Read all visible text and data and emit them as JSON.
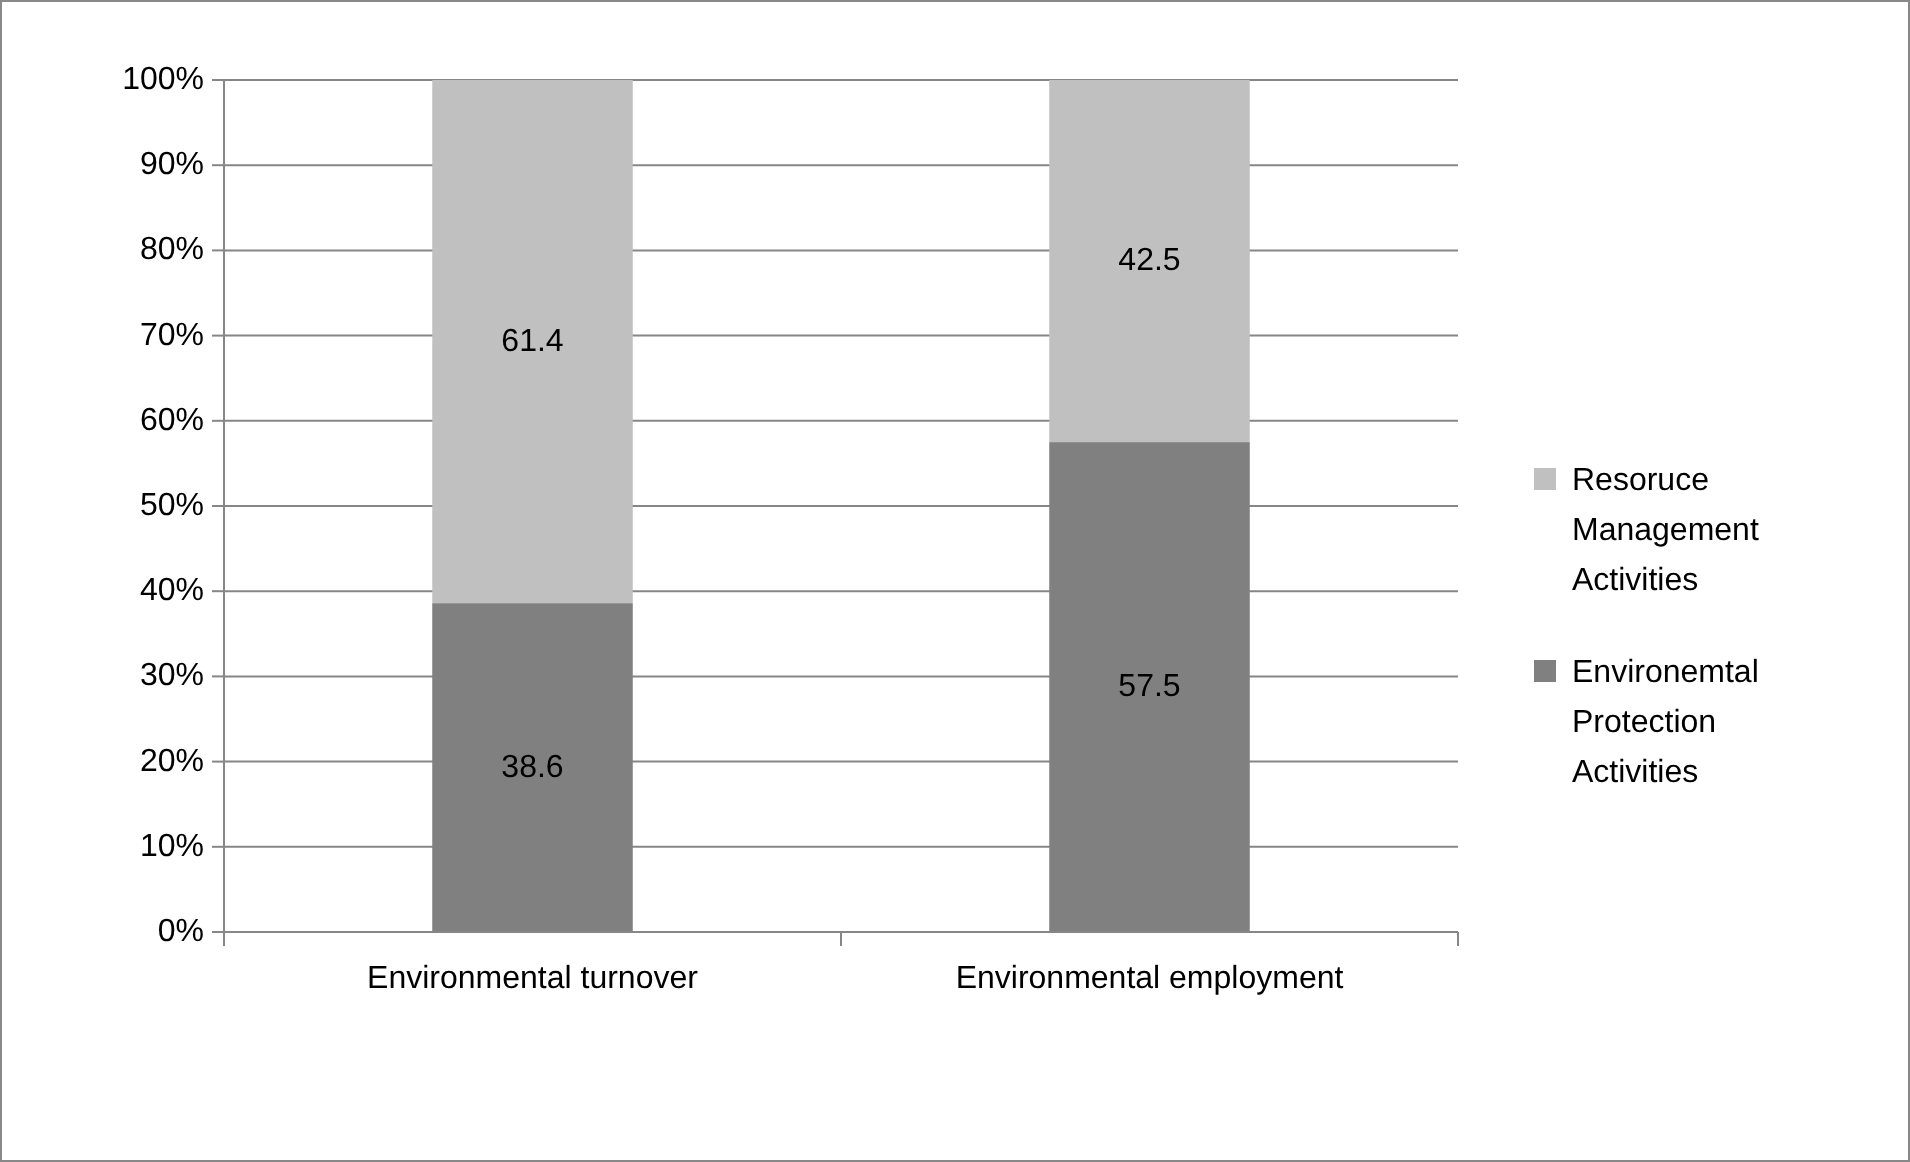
{
  "chart_data": {
    "type": "bar",
    "stacked": true,
    "categories": [
      "Environmental turnover",
      "Environmental employment"
    ],
    "series": [
      {
        "name": "Environemtal Protection Activities",
        "color": "#808080",
        "values": [
          38.6,
          57.5
        ]
      },
      {
        "name": "Resoruce Management Activities",
        "color": "#c0c0c0",
        "values": [
          61.4,
          42.5
        ]
      }
    ],
    "ylim": [
      0,
      100
    ],
    "yticks": [
      {
        "value": 0,
        "label": "0%"
      },
      {
        "value": 10,
        "label": "10%"
      },
      {
        "value": 20,
        "label": "20%"
      },
      {
        "value": 30,
        "label": "30%"
      },
      {
        "value": 40,
        "label": "40%"
      },
      {
        "value": 50,
        "label": "50%"
      },
      {
        "value": 60,
        "label": "60%"
      },
      {
        "value": 70,
        "label": "70%"
      },
      {
        "value": 80,
        "label": "80%"
      },
      {
        "value": 90,
        "label": "90%"
      },
      {
        "value": 100,
        "label": "100%"
      }
    ],
    "grid": "y",
    "legend": "right",
    "data_labels": true
  }
}
